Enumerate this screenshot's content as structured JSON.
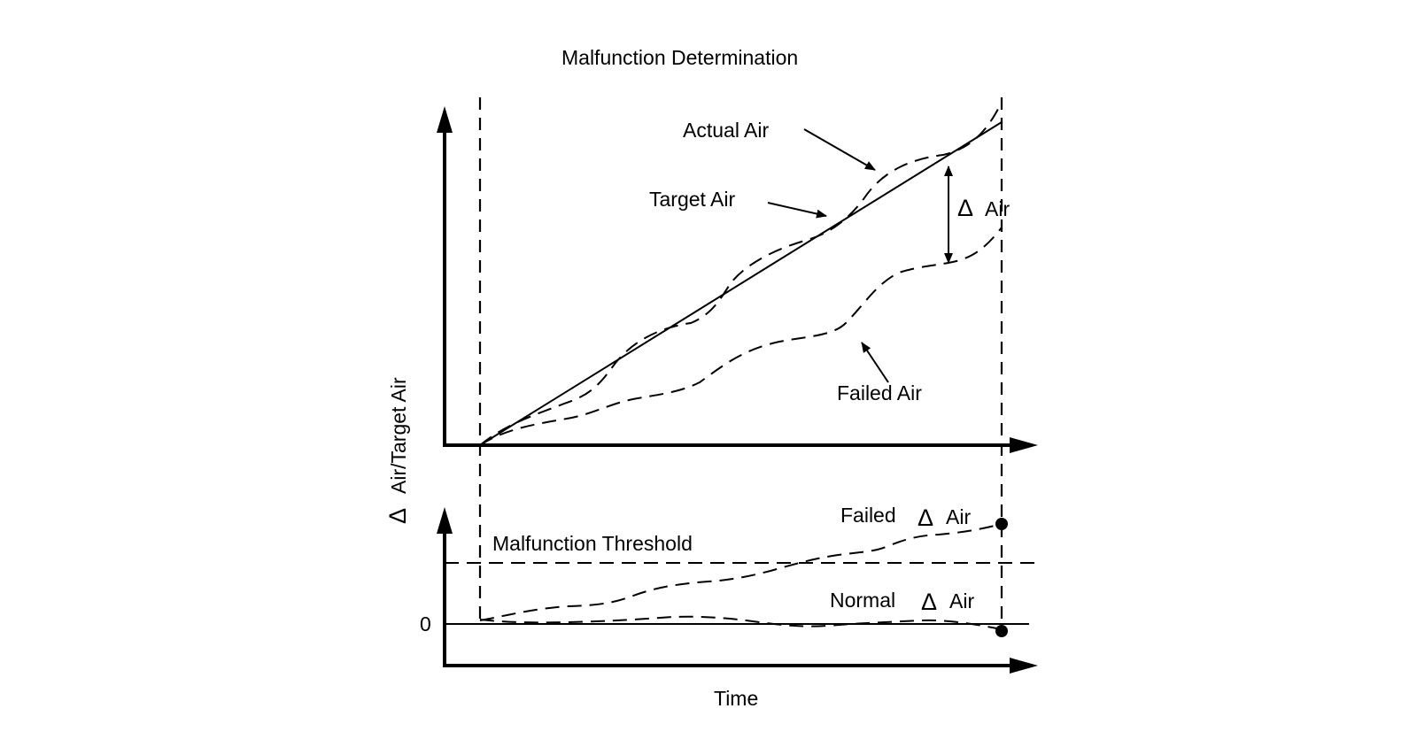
{
  "title": "Malfunction Determination",
  "y_axis_label_symbol": "Δ",
  "y_axis_label_text": "Air/Target Air",
  "x_axis_label": "Time",
  "upper_plot": {
    "actual_air_label": "Actual Air",
    "target_air_label": "Target Air",
    "delta_symbol": "Δ",
    "delta_text": "Air",
    "failed_air_label": "Failed Air"
  },
  "lower_plot": {
    "threshold_label": "Malfunction Threshold",
    "zero_label": "0",
    "failed_label": "Failed",
    "failed_delta_symbol": "Δ",
    "failed_delta_text": "Air",
    "normal_label": "Normal",
    "normal_delta_symbol": "Δ",
    "normal_delta_text": "Air"
  }
}
